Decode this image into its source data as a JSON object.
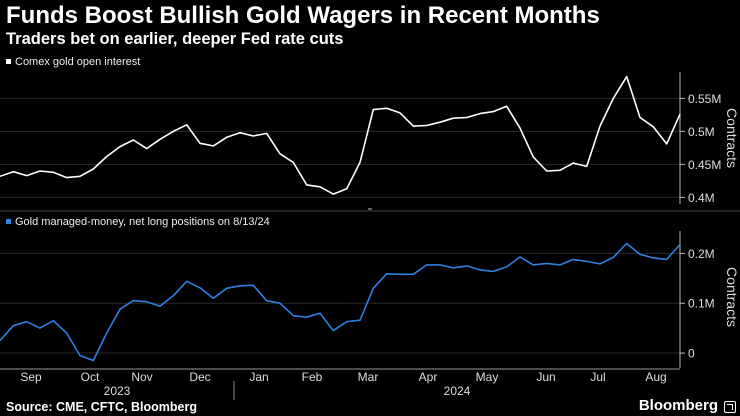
{
  "title": "Funds Boost Bullish Gold Wagers in Recent Months",
  "subtitle": "Traders bet on earlier, deeper Fed rate cuts",
  "source": "Source: CME, CFTC, Bloomberg",
  "brand": "Bloomberg",
  "colors": {
    "background": "#000000",
    "series1": "#ffffff",
    "series2": "#2f7fe0",
    "grid": "#2a2a2a"
  },
  "x_axis": {
    "months": [
      "Sep",
      "Oct",
      "Nov",
      "Dec",
      "Jan",
      "Feb",
      "Mar",
      "Apr",
      "May",
      "Jun",
      "Jul",
      "Aug"
    ],
    "years": [
      "2023",
      "2024"
    ]
  },
  "chart_data": [
    {
      "type": "line",
      "legend": "Comex gold open interest",
      "legend_position": "top-left",
      "ylabel": "Contracts",
      "ylim": [
        0.39,
        0.59
      ],
      "yticks": [
        0.4,
        0.45,
        0.5,
        0.55
      ],
      "ytick_labels": [
        "0.4M",
        "0.45M",
        "0.5M",
        "0.55M"
      ],
      "grid": true,
      "series": [
        {
          "name": "Comex gold open interest",
          "color": "#ffffff",
          "x": [
            0,
            1,
            2,
            3,
            4,
            5,
            6,
            7,
            8,
            9,
            10,
            11,
            12,
            13,
            14,
            15,
            16,
            17,
            18,
            19,
            20,
            21,
            22,
            23,
            24,
            25,
            26,
            27,
            28,
            29,
            30,
            31,
            32,
            33,
            34,
            35,
            36,
            37,
            38,
            39,
            40,
            41,
            42,
            43,
            44,
            45,
            46,
            47,
            48,
            49,
            50,
            51
          ],
          "values": [
            0.432,
            0.439,
            0.433,
            0.44,
            0.438,
            0.43,
            0.432,
            0.443,
            0.462,
            0.477,
            0.487,
            0.474,
            0.488,
            0.5,
            0.51,
            0.482,
            0.478,
            0.491,
            0.498,
            0.493,
            0.497,
            0.466,
            0.453,
            0.419,
            0.416,
            0.405,
            0.413,
            0.453,
            0.533,
            0.535,
            0.528,
            0.508,
            0.509,
            0.514,
            0.52,
            0.521,
            0.527,
            0.53,
            0.538,
            0.505,
            0.461,
            0.44,
            0.441,
            0.452,
            0.447,
            0.508,
            0.55,
            0.583,
            0.521,
            0.507,
            0.481,
            0.526
          ]
        }
      ]
    },
    {
      "type": "line",
      "legend": "Gold managed-money, net long positions on 8/13/24",
      "legend_position": "top-left",
      "ylabel": "Contracts",
      "ylim": [
        -0.03,
        0.245
      ],
      "yticks": [
        0,
        0.1,
        0.2
      ],
      "ytick_labels": [
        "0",
        "0.1M",
        "0.2M"
      ],
      "grid": true,
      "series": [
        {
          "name": "Gold managed-money, net long positions on 8/13/24",
          "color": "#2f7fe0",
          "x": [
            0,
            1,
            2,
            3,
            4,
            5,
            6,
            7,
            8,
            9,
            10,
            11,
            12,
            13,
            14,
            15,
            16,
            17,
            18,
            19,
            20,
            21,
            22,
            23,
            24,
            25,
            26,
            27,
            28,
            29,
            30,
            31,
            32,
            33,
            34,
            35,
            36,
            37,
            38,
            39,
            40,
            41,
            42,
            43,
            44,
            45,
            46,
            47,
            48,
            49,
            50,
            51
          ],
          "values": [
            0.025,
            0.055,
            0.063,
            0.05,
            0.065,
            0.04,
            -0.005,
            -0.015,
            0.04,
            0.088,
            0.105,
            0.103,
            0.094,
            0.115,
            0.144,
            0.131,
            0.11,
            0.13,
            0.135,
            0.136,
            0.105,
            0.1,
            0.075,
            0.072,
            0.08,
            0.045,
            0.063,
            0.066,
            0.13,
            0.159,
            0.158,
            0.158,
            0.177,
            0.177,
            0.171,
            0.175,
            0.167,
            0.164,
            0.173,
            0.193,
            0.177,
            0.18,
            0.177,
            0.188,
            0.184,
            0.179,
            0.192,
            0.22,
            0.198,
            0.191,
            0.188,
            0.218
          ]
        }
      ]
    }
  ]
}
